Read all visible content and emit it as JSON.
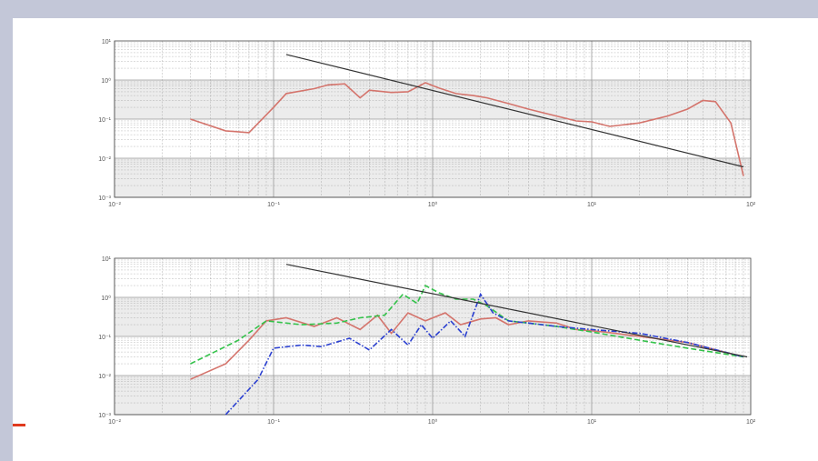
{
  "colors": {
    "background": "#c3c7d8",
    "slide": "#ffffff",
    "accent": "#e03a1e",
    "grid": "#9a9a9a",
    "band": "#ececec",
    "fit": "#3a3a3a"
  },
  "chart_data": [
    {
      "type": "line",
      "title": "",
      "xlabel": "",
      "ylabel": "",
      "xscale": "log",
      "yscale": "log",
      "xlim": [
        0.01,
        100
      ],
      "ylim": [
        0.001,
        10
      ],
      "xticks": [
        0.01,
        0.1,
        1,
        10,
        100
      ],
      "yticks": [
        0.001,
        0.01,
        0.1,
        1,
        10
      ],
      "grid": true,
      "series": [
        {
          "color": "#d4746c",
          "style": "solid",
          "x": [
            0.03,
            0.05,
            0.07,
            0.1,
            0.12,
            0.18,
            0.22,
            0.28,
            0.35,
            0.4,
            0.55,
            0.7,
            0.9,
            1.1,
            1.4,
            1.8,
            2.2,
            3,
            4,
            6,
            8,
            10,
            13,
            20,
            30,
            40,
            50,
            60,
            75,
            90
          ],
          "y": [
            0.1,
            0.05,
            0.045,
            0.2,
            0.45,
            0.6,
            0.75,
            0.8,
            0.35,
            0.55,
            0.48,
            0.5,
            0.85,
            0.62,
            0.45,
            0.4,
            0.35,
            0.25,
            0.18,
            0.12,
            0.09,
            0.085,
            0.065,
            0.08,
            0.12,
            0.18,
            0.3,
            0.28,
            0.08,
            0.0035
          ]
        },
        {
          "name": "",
          "color": "#333333",
          "style": "solid",
          "x": [
            0.12,
            90
          ],
          "y": [
            4.5,
            0.006
          ]
        }
      ]
    },
    {
      "type": "line",
      "title": "",
      "xlabel": "",
      "ylabel": "",
      "xscale": "log",
      "yscale": "log",
      "xlim": [
        0.01,
        100
      ],
      "ylim": [
        0.001,
        10
      ],
      "xticks": [
        0.01,
        0.1,
        1,
        10,
        100
      ],
      "yticks": [
        0.001,
        0.01,
        0.1,
        1,
        10
      ],
      "grid": true,
      "series": [
        {
          "color": "#d4746c",
          "style": "solid",
          "x": [
            0.03,
            0.05,
            0.07,
            0.09,
            0.12,
            0.18,
            0.25,
            0.35,
            0.45,
            0.55,
            0.7,
            0.9,
            1.2,
            1.5,
            2,
            2.5,
            3,
            4,
            6,
            8,
            12,
            20,
            40,
            90
          ],
          "y": [
            0.008,
            0.02,
            0.08,
            0.25,
            0.3,
            0.18,
            0.3,
            0.15,
            0.35,
            0.12,
            0.4,
            0.25,
            0.4,
            0.2,
            0.28,
            0.3,
            0.2,
            0.25,
            0.22,
            0.15,
            0.13,
            0.1,
            0.07,
            0.03
          ]
        },
        {
          "color": "#33c24a",
          "style": "dashed",
          "x": [
            0.03,
            0.06,
            0.09,
            0.15,
            0.25,
            0.35,
            0.5,
            0.65,
            0.8,
            0.9,
            1.1,
            1.4,
            1.8,
            2.2,
            3,
            4,
            6,
            10,
            20,
            40,
            90
          ],
          "y": [
            0.02,
            0.08,
            0.25,
            0.2,
            0.22,
            0.3,
            0.35,
            1.2,
            0.7,
            2.0,
            1.3,
            0.9,
            0.9,
            0.6,
            0.25,
            0.22,
            0.18,
            0.13,
            0.08,
            0.05,
            0.03
          ]
        },
        {
          "color": "#2a3fd0",
          "style": "dashdot",
          "x": [
            0.05,
            0.08,
            0.1,
            0.15,
            0.2,
            0.3,
            0.4,
            0.55,
            0.7,
            0.85,
            1.0,
            1.3,
            1.6,
            2.0,
            2.4,
            3,
            4,
            6,
            10,
            20,
            40,
            90
          ],
          "y": [
            0.001,
            0.008,
            0.05,
            0.06,
            0.055,
            0.09,
            0.045,
            0.15,
            0.06,
            0.2,
            0.09,
            0.25,
            0.1,
            1.2,
            0.4,
            0.25,
            0.22,
            0.18,
            0.15,
            0.12,
            0.07,
            0.03
          ]
        },
        {
          "color": "#333333",
          "style": "solid",
          "x": [
            0.12,
            95
          ],
          "y": [
            7,
            0.03
          ]
        }
      ]
    }
  ]
}
